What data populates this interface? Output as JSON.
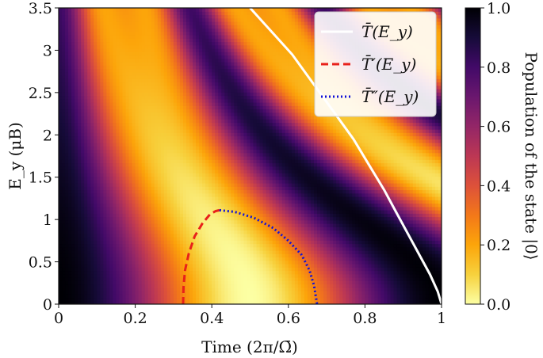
{
  "chart_data": {
    "type": "heatmap",
    "title": "",
    "xlabel": "Time (2π/Ω̄)",
    "ylabel": "E_y (μB)",
    "xlim": [
      0,
      1
    ],
    "ylim": [
      0,
      3.5
    ],
    "xticks": [
      "0",
      "0.2",
      "0.4",
      "0.6",
      "0.8",
      "1"
    ],
    "yticks": [
      "0",
      "0.5",
      "1",
      "1.5",
      "2",
      "2.5",
      "3",
      "3.5"
    ],
    "colorbar": {
      "label": "Population of the state |0⟩",
      "range": [
        0,
        1
      ],
      "ticks": [
        "0.0",
        "0.2",
        "0.4",
        "0.6",
        "0.8",
        "1.0"
      ],
      "colormap": "inferno_r"
    },
    "legend": {
      "placement": "top-right"
    },
    "series": [
      {
        "name": "T̄(E_y)",
        "style": "solid",
        "color": "#ffffff",
        "x": [
          1.0,
          0.99,
          0.97,
          0.94,
          0.91,
          0.88,
          0.85,
          0.81,
          0.77,
          0.73,
          0.69,
          0.65,
          0.61,
          0.57,
          0.54,
          0.5
        ],
        "y": [
          0.0,
          0.15,
          0.35,
          0.6,
          0.85,
          1.1,
          1.35,
          1.65,
          1.95,
          2.2,
          2.45,
          2.7,
          2.95,
          3.15,
          3.3,
          3.5
        ]
      },
      {
        "name": "T̄′(E_y)",
        "style": "dashed",
        "color": "#e8211a",
        "x": [
          0.325,
          0.326,
          0.33,
          0.34,
          0.355,
          0.375,
          0.395,
          0.41,
          0.42
        ],
        "y": [
          0.0,
          0.2,
          0.4,
          0.6,
          0.8,
          0.95,
          1.06,
          1.1,
          1.11
        ]
      },
      {
        "name": "T̄″(E_y)",
        "style": "dotted",
        "color": "#1010d8",
        "x": [
          0.42,
          0.46,
          0.51,
          0.56,
          0.6,
          0.635,
          0.655,
          0.667,
          0.672,
          0.675
        ],
        "y": [
          1.11,
          1.09,
          1.02,
          0.9,
          0.75,
          0.58,
          0.4,
          0.22,
          0.08,
          0.0
        ]
      }
    ]
  }
}
